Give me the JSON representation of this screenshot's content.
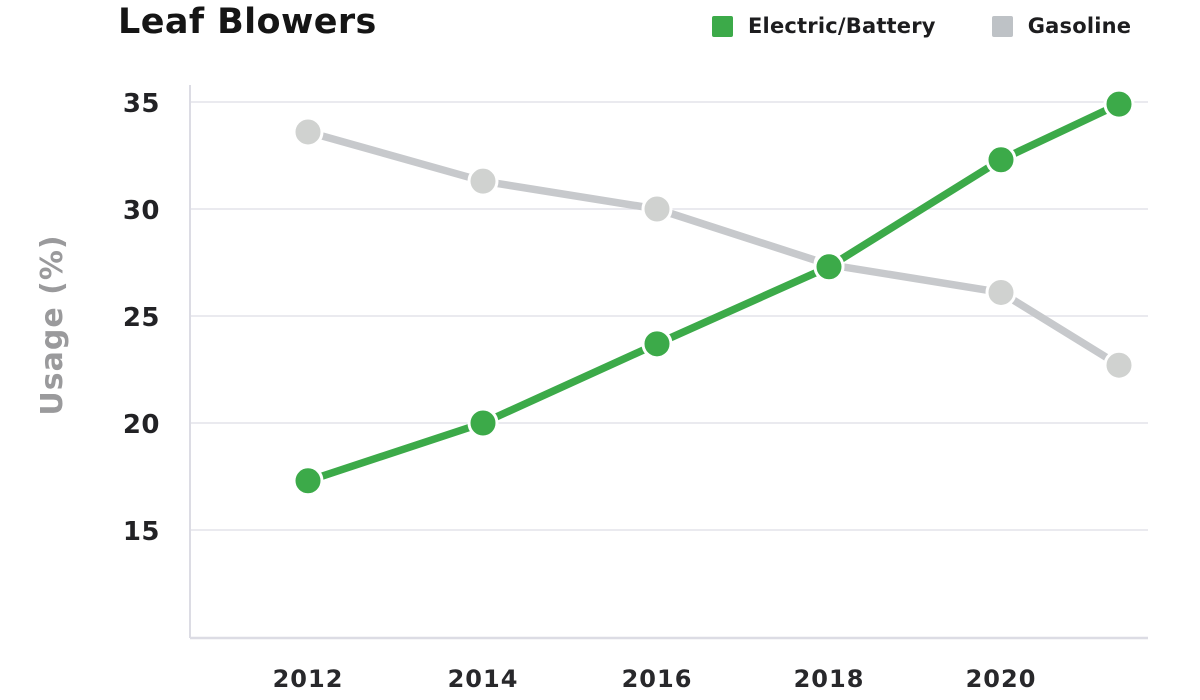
{
  "chart": {
    "title": "Leaf Blowers"
  },
  "chart_data": {
    "type": "line",
    "title": "Leaf Blowers",
    "xlabel": "",
    "ylabel": "Usage (%)",
    "x": [
      2012,
      2014,
      2016,
      2018,
      2020,
      2021
    ],
    "x_tick_labels": [
      "2012",
      "2014",
      "2016",
      "2018",
      "2020"
    ],
    "y_ticks": [
      35,
      30,
      25,
      20,
      15
    ],
    "ylim": [
      10,
      36
    ],
    "grid": "horizontal",
    "legend_position": "top-right",
    "series": [
      {
        "name": "Electric/Battery",
        "color": "#3caa49",
        "marker_color": "#3caa49",
        "values": [
          17.3,
          20.0,
          23.7,
          27.3,
          32.3,
          34.9
        ]
      },
      {
        "name": "Gasoline",
        "color": "#c7c9cc",
        "marker_color": "#d0d2d0",
        "values": [
          33.6,
          31.3,
          30.0,
          27.4,
          26.1,
          22.7
        ]
      }
    ]
  },
  "colors": {
    "grid": "#e4e4ea",
    "axis": "#dcdce4",
    "tick_text": "#222225",
    "ylabel_text": "#9a9a9c"
  }
}
